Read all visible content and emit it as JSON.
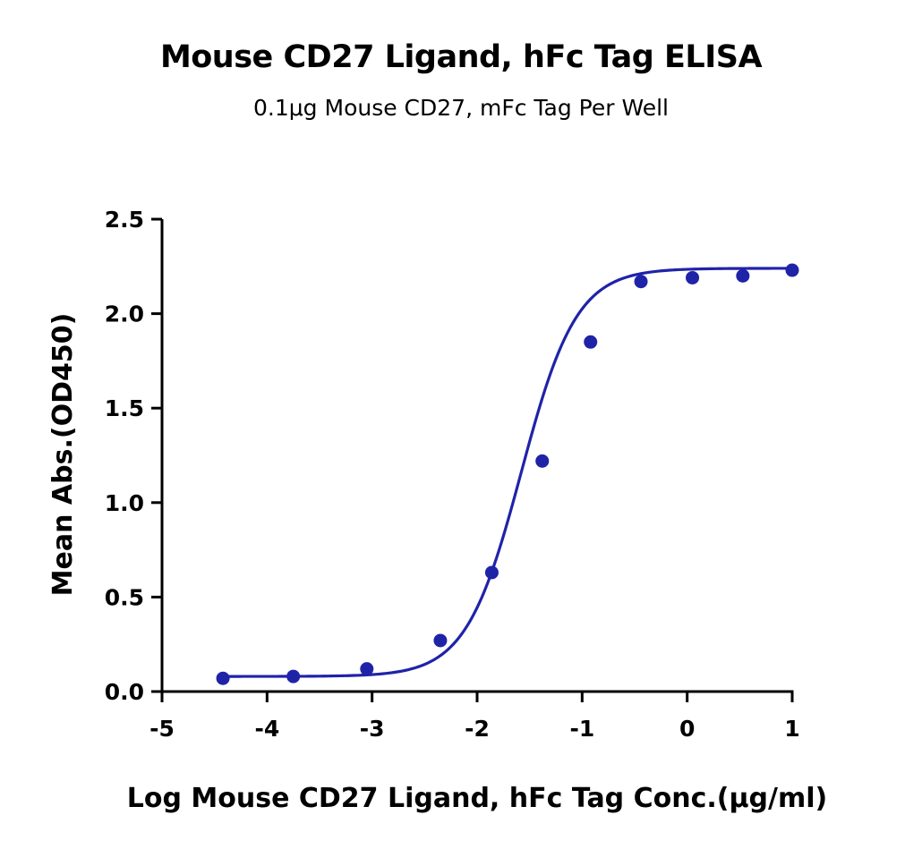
{
  "chart_data": {
    "type": "scatter",
    "title": "Mouse CD27 Ligand, hFc Tag ELISA",
    "subtitle": "0.1μg Mouse CD27, mFc Tag Per Well",
    "xlabel": "Log Mouse CD27 Ligand, hFc Tag Conc.(μg/ml)",
    "ylabel": "Mean Abs.(OD450)",
    "xlim": [
      -5,
      1
    ],
    "ylim": [
      0,
      2.5
    ],
    "x_ticks": [
      "-5",
      "-4",
      "-3",
      "-2",
      "-1",
      "0",
      "1"
    ],
    "y_ticks": [
      "0.0",
      "0.5",
      "1.0",
      "1.5",
      "2.0",
      "2.5"
    ],
    "grid": false,
    "color": "#1f23a8",
    "series": [
      {
        "x": [
          -4.42,
          -3.75,
          -3.05,
          -2.35,
          -1.86,
          -1.38,
          -0.92,
          -0.44,
          0.05,
          0.53,
          1.0
        ],
        "y": [
          0.07,
          0.08,
          0.12,
          0.27,
          0.63,
          1.22,
          1.85,
          2.17,
          2.19,
          2.2,
          2.23
        ]
      }
    ],
    "fit": {
      "bottom": 0.08,
      "top": 2.24,
      "logEC50": -1.58,
      "hill": 1.65
    }
  }
}
